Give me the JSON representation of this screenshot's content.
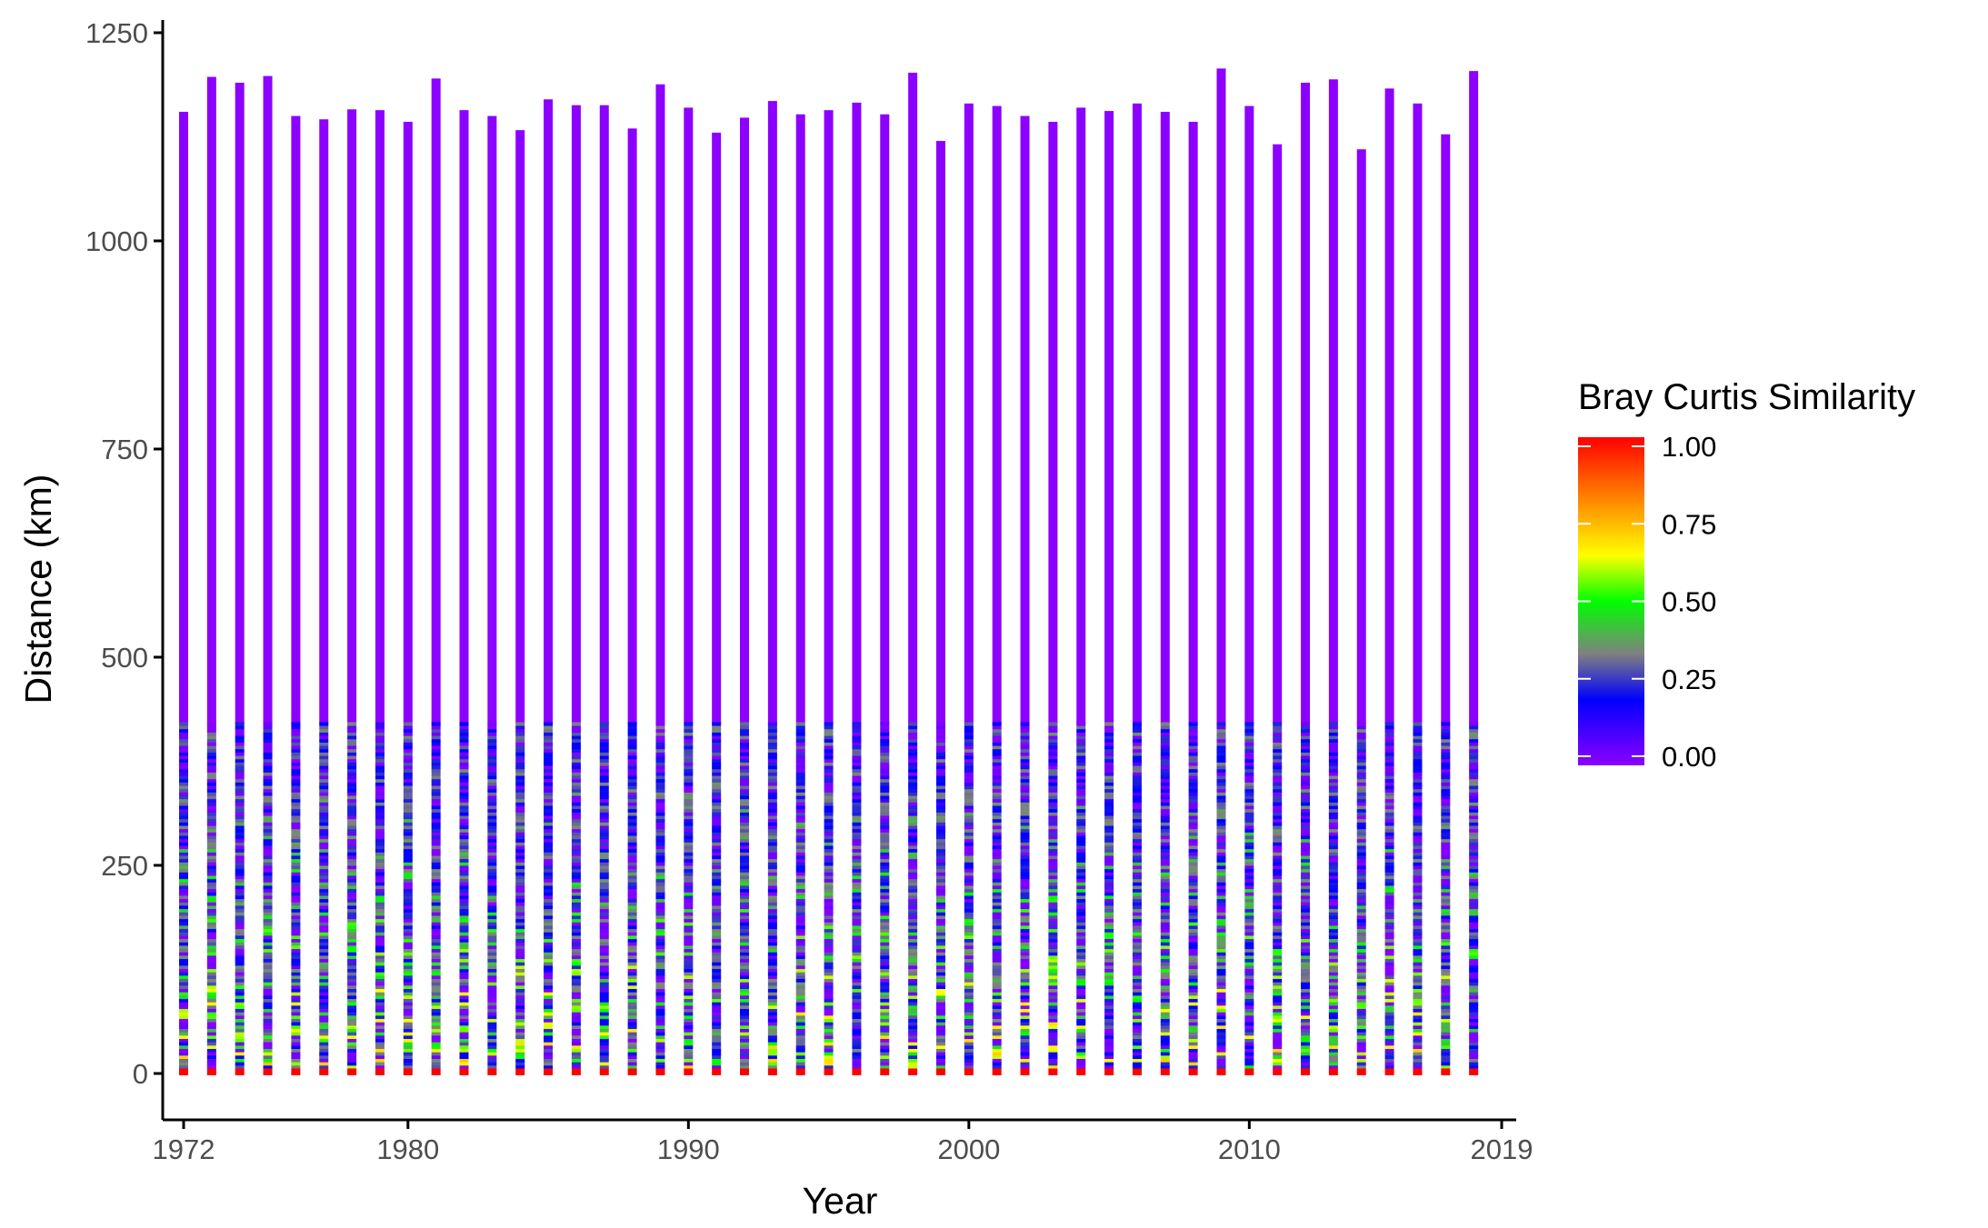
{
  "chart_data": {
    "type": "heatmap",
    "title": "",
    "xlabel": "Year",
    "ylabel": "Distance (km)",
    "x_ticks": [
      "1972",
      "1980",
      "1990",
      "2000",
      "2010",
      "2019"
    ],
    "y_ticks": [
      "0",
      "250",
      "500",
      "750",
      "1000",
      "1250"
    ],
    "xlim": [
      1972,
      2019
    ],
    "ylim": [
      -55,
      1255
    ],
    "grid": false,
    "legend": {
      "title": "Bray Curtis Similarity",
      "position": "right",
      "labels": [
        "1.00",
        "0.75",
        "0.50",
        "0.25",
        "0.00"
      ],
      "range": [
        0,
        1
      ]
    },
    "colors": {
      "scale": [
        "#8B00FF",
        "#0000FF",
        "#808080",
        "#00FF00",
        "#FFFF00",
        "#FF7F00",
        "#FF0000"
      ],
      "far_distance": "#8B00FF",
      "zero_distance": "#FF0000",
      "axis": "#000000"
    },
    "series": [
      {
        "year": 1972,
        "max_km": 1155
      },
      {
        "year": 1973,
        "max_km": 1197
      },
      {
        "year": 1974,
        "max_km": 1190
      },
      {
        "year": 1975,
        "max_km": 1198
      },
      {
        "year": 1976,
        "max_km": 1150
      },
      {
        "year": 1977,
        "max_km": 1146
      },
      {
        "year": 1978,
        "max_km": 1158
      },
      {
        "year": 1979,
        "max_km": 1157
      },
      {
        "year": 1980,
        "max_km": 1143
      },
      {
        "year": 1981,
        "max_km": 1195
      },
      {
        "year": 1982,
        "max_km": 1157
      },
      {
        "year": 1983,
        "max_km": 1150
      },
      {
        "year": 1984,
        "max_km": 1133
      },
      {
        "year": 1985,
        "max_km": 1170
      },
      {
        "year": 1986,
        "max_km": 1163
      },
      {
        "year": 1987,
        "max_km": 1163
      },
      {
        "year": 1988,
        "max_km": 1135
      },
      {
        "year": 1989,
        "max_km": 1188
      },
      {
        "year": 1990,
        "max_km": 1160
      },
      {
        "year": 1991,
        "max_km": 1130
      },
      {
        "year": 1992,
        "max_km": 1148
      },
      {
        "year": 1993,
        "max_km": 1168
      },
      {
        "year": 1994,
        "max_km": 1152
      },
      {
        "year": 1995,
        "max_km": 1157
      },
      {
        "year": 1996,
        "max_km": 1166
      },
      {
        "year": 1997,
        "max_km": 1152
      },
      {
        "year": 1998,
        "max_km": 1202
      },
      {
        "year": 1999,
        "max_km": 1120
      },
      {
        "year": 2000,
        "max_km": 1165
      },
      {
        "year": 2001,
        "max_km": 1162
      },
      {
        "year": 2002,
        "max_km": 1150
      },
      {
        "year": 2003,
        "max_km": 1143
      },
      {
        "year": 2004,
        "max_km": 1160
      },
      {
        "year": 2005,
        "max_km": 1156
      },
      {
        "year": 2006,
        "max_km": 1165
      },
      {
        "year": 2007,
        "max_km": 1155
      },
      {
        "year": 2008,
        "max_km": 1143
      },
      {
        "year": 2009,
        "max_km": 1207
      },
      {
        "year": 2010,
        "max_km": 1162
      },
      {
        "year": 2011,
        "max_km": 1116
      },
      {
        "year": 2012,
        "max_km": 1190
      },
      {
        "year": 2013,
        "max_km": 1194
      },
      {
        "year": 2014,
        "max_km": 1110
      },
      {
        "year": 2015,
        "max_km": 1183
      },
      {
        "year": 2016,
        "max_km": 1165
      },
      {
        "year": 2017,
        "max_km": 1128
      },
      {
        "year": 2018,
        "max_km": 1204
      }
    ]
  }
}
